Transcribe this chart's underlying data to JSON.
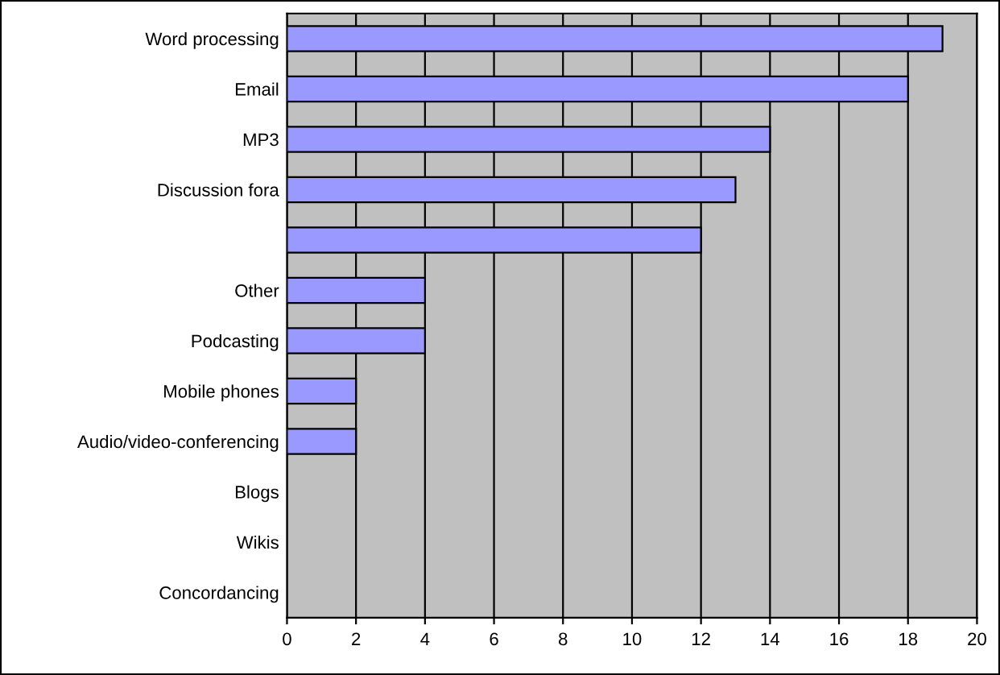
{
  "chart_data": {
    "type": "bar",
    "orientation": "horizontal",
    "categories": [
      "Word processing",
      "Email",
      "MP3",
      "Discussion fora",
      null,
      "Other",
      "Podcasting",
      "Mobile phones",
      "Audio/video-conferencing",
      "Blogs",
      "Wikis",
      "Concordancing"
    ],
    "values": [
      19,
      18,
      14,
      13,
      12,
      4,
      4,
      2,
      2,
      0,
      0,
      0
    ],
    "color": "#9999ff",
    "xlim": [
      0,
      20
    ],
    "xticks": [
      0,
      2,
      4,
      6,
      8,
      10,
      12,
      14,
      16,
      18,
      20
    ],
    "grid": "x",
    "legend": false
  }
}
